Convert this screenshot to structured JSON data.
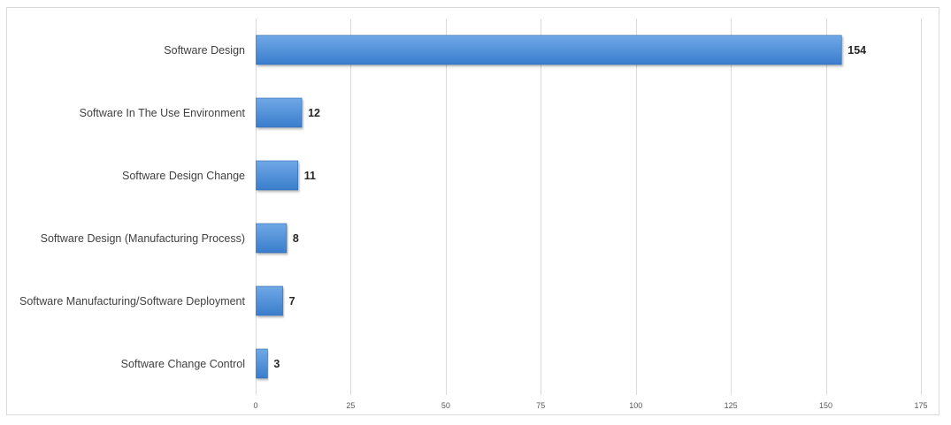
{
  "chart_data": {
    "type": "bar",
    "orientation": "horizontal",
    "title": "",
    "xlabel": "",
    "ylabel": "",
    "categories": [
      "Software Design",
      "Software In The Use Environment",
      "Software Design Change",
      "Software Design (Manufacturing Process)",
      "Software Manufacturing/Software Deployment",
      "Software Change Control"
    ],
    "values": [
      154,
      12,
      11,
      8,
      7,
      3
    ],
    "xlim": [
      0,
      175
    ],
    "xticks": [
      0,
      25,
      50,
      75,
      100,
      125,
      150,
      175
    ],
    "grid": true,
    "data_labels": true,
    "legend": "none",
    "colors": {
      "bar_top": "#6fa8e6",
      "bar_bottom": "#3a7dcc",
      "bar_edge": "#2f6bb3",
      "grid": "#d9d9d9"
    }
  }
}
